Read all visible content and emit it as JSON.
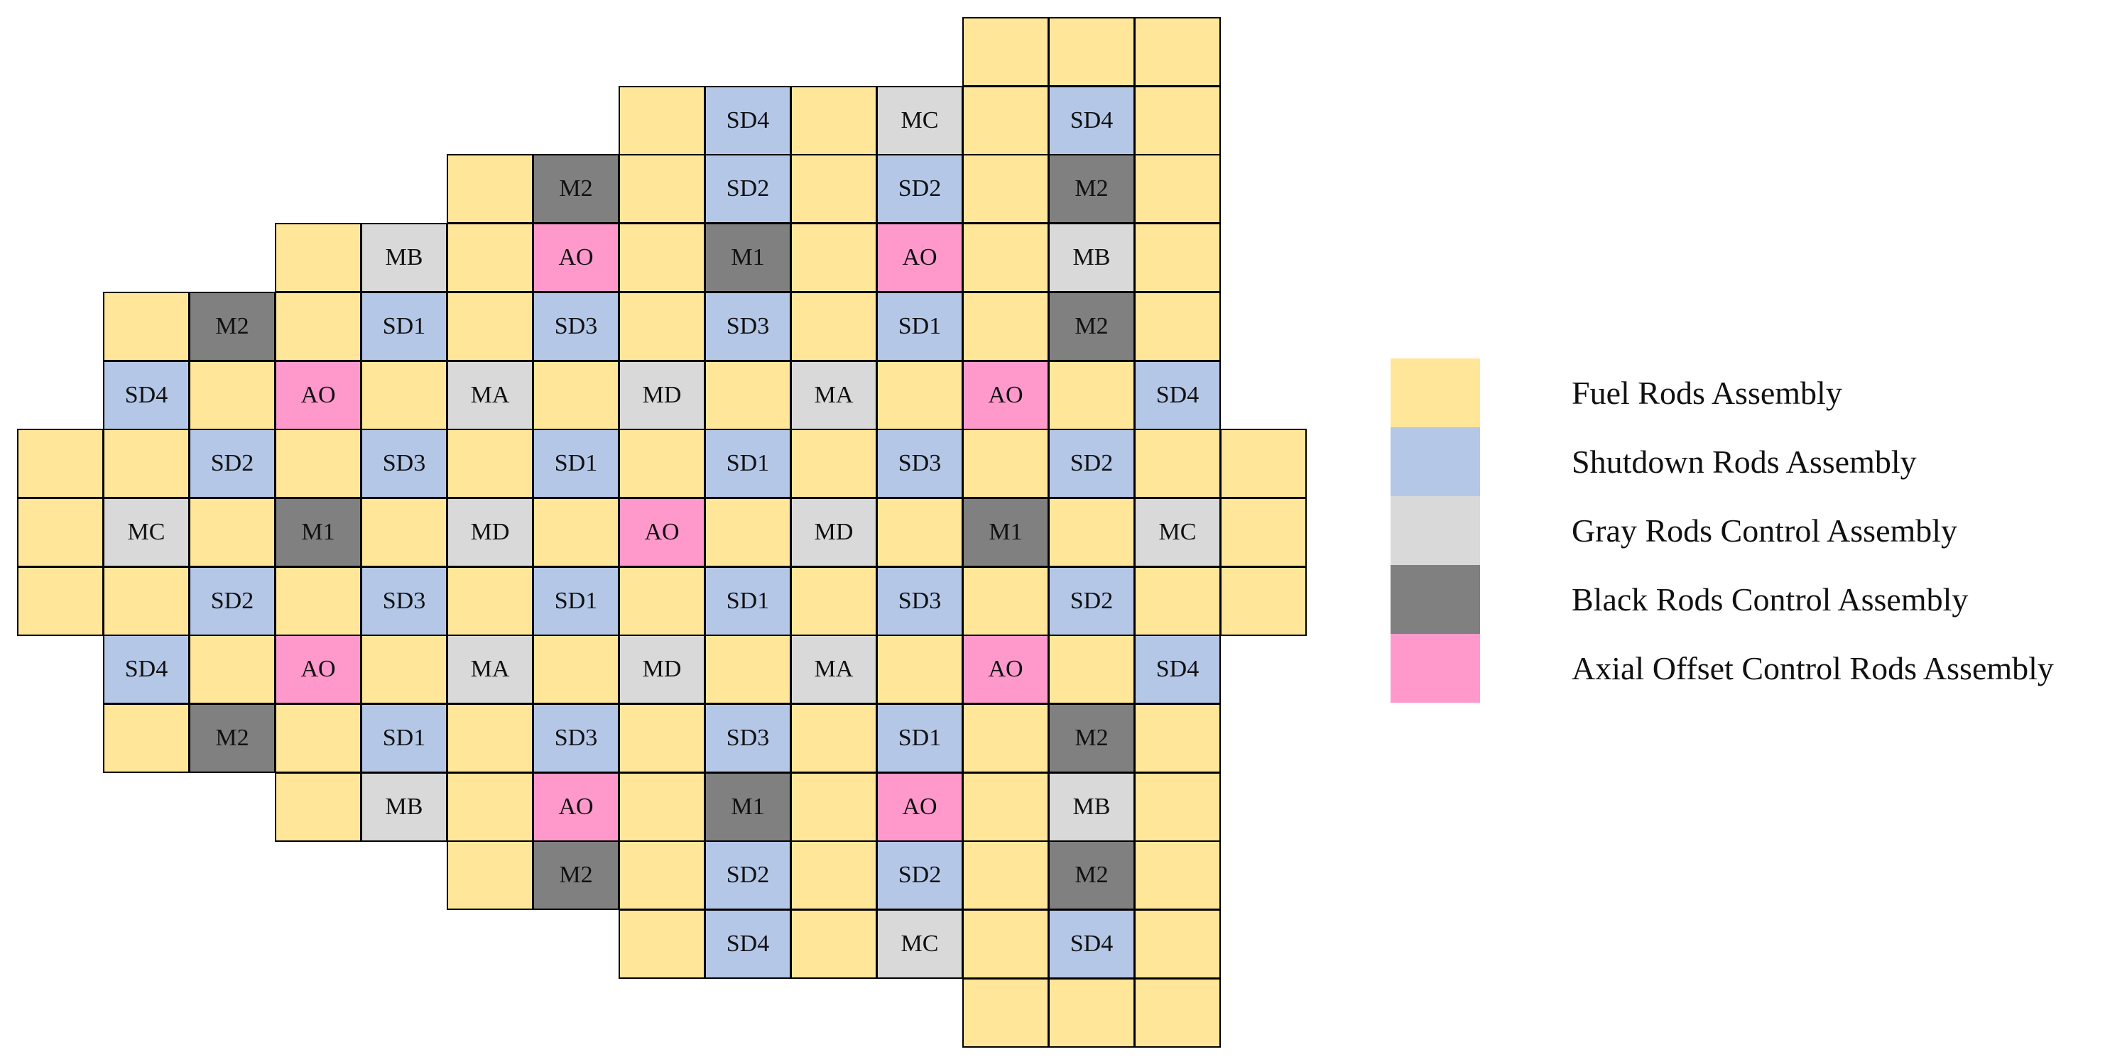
{
  "colors": {
    "F": "#FFE699",
    "S": "#B4C7E7",
    "G": "#D9D9D9",
    "B": "#808080",
    "A": "#FF99CC"
  },
  "core": {
    "rows": [
      [
        "",
        "",
        "",
        "",
        "",
        "F",
        "F",
        "F",
        "",
        "",
        "",
        "",
        "",
        "",
        "",
        ""
      ],
      [
        "",
        "",
        "",
        "F",
        "SD4",
        "F",
        "MC",
        "F",
        "SD4",
        "F",
        "",
        "",
        "",
        "",
        "",
        ""
      ],
      [
        "",
        "",
        "F",
        "M2",
        "F",
        "SD2",
        "F",
        "SD2",
        "F",
        "M2",
        "F",
        "",
        "",
        "",
        "",
        ""
      ],
      [
        "",
        "F",
        "MB",
        "F",
        "AO",
        "F",
        "M1",
        "F",
        "AO",
        "F",
        "MB",
        "F",
        "",
        "",
        "",
        ""
      ],
      [
        "F",
        "M2",
        "F",
        "SD1",
        "F",
        "SD3",
        "F",
        "SD3",
        "F",
        "SD1",
        "F",
        "M2",
        "F",
        "",
        "",
        ""
      ],
      [
        "SD4",
        "F",
        "AO",
        "F",
        "MA",
        "F",
        "MD",
        "F",
        "MA",
        "F",
        "AO",
        "F",
        "SD4",
        "",
        "",
        ""
      ],
      [
        "F",
        "F",
        "SD2",
        "F",
        "SD3",
        "F",
        "SD1",
        "F",
        "SD1",
        "F",
        "SD3",
        "F",
        "SD2",
        "F",
        "F",
        ""
      ],
      [
        "F",
        "MC",
        "F",
        "M1",
        "F",
        "MD",
        "F",
        "AO",
        "F",
        "MD",
        "F",
        "M1",
        "F",
        "MC",
        "F",
        ""
      ],
      [
        "F",
        "F",
        "SD2",
        "F",
        "SD3",
        "F",
        "SD1",
        "F",
        "SD1",
        "F",
        "SD3",
        "F",
        "SD2",
        "F",
        "F",
        ""
      ],
      [
        "SD4",
        "F",
        "AO",
        "F",
        "MA",
        "F",
        "MD",
        "F",
        "MA",
        "F",
        "AO",
        "F",
        "SD4",
        "",
        "",
        ""
      ],
      [
        "F",
        "M2",
        "F",
        "SD1",
        "F",
        "SD3",
        "F",
        "SD3",
        "F",
        "SD1",
        "F",
        "M2",
        "F",
        "",
        "",
        ""
      ],
      [
        "",
        "F",
        "MB",
        "F",
        "AO",
        "F",
        "M1",
        "F",
        "AO",
        "F",
        "MB",
        "F",
        "",
        "",
        "",
        ""
      ],
      [
        "",
        "",
        "F",
        "M2",
        "F",
        "SD2",
        "F",
        "SD2",
        "F",
        "M2",
        "F",
        "",
        "",
        "",
        "",
        ""
      ],
      [
        "",
        "",
        "",
        "F",
        "SD4",
        "F",
        "MC",
        "F",
        "SD4",
        "F",
        "",
        "",
        "",
        "",
        "",
        ""
      ],
      [
        "",
        "",
        "",
        "",
        "",
        "F",
        "F",
        "F",
        "",
        "",
        "",
        "",
        "",
        "",
        "",
        ""
      ]
    ],
    "row_starts": [
      6,
      4,
      3,
      2,
      1,
      1,
      0,
      0,
      0,
      1,
      1,
      2,
      3,
      4,
      6
    ]
  },
  "legend": {
    "items": [
      {
        "key": "F",
        "label": "Fuel Rods Assembly"
      },
      {
        "key": "S",
        "label": "Shutdown Rods Assembly"
      },
      {
        "key": "G",
        "label": "Gray Rods Control Assembly"
      },
      {
        "key": "B",
        "label": "Black Rods Control Assembly"
      },
      {
        "key": "A",
        "label": "Axial Offset Control Rods Assembly"
      }
    ]
  }
}
